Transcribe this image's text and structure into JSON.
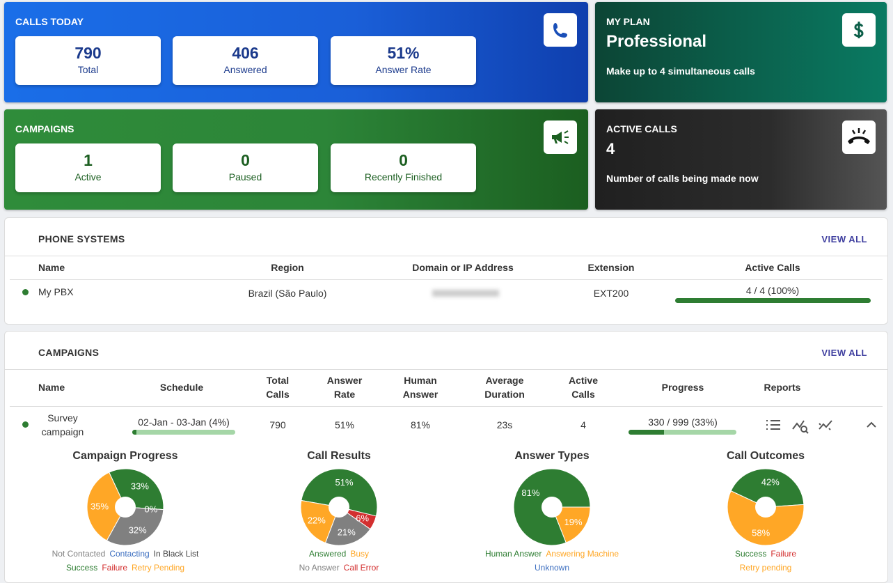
{
  "calls_today": {
    "title": "CALLS TODAY",
    "stats": [
      {
        "value": "790",
        "label": "Total"
      },
      {
        "value": "406",
        "label": "Answered"
      },
      {
        "value": "51%",
        "label": "Answer Rate"
      }
    ]
  },
  "my_plan": {
    "title": "MY PLAN",
    "plan": "Professional",
    "description": "Make up to 4 simultaneous calls"
  },
  "campaigns_summary": {
    "title": "CAMPAIGNS",
    "stats": [
      {
        "value": "1",
        "label": "Active"
      },
      {
        "value": "0",
        "label": "Paused"
      },
      {
        "value": "0",
        "label": "Recently Finished"
      }
    ]
  },
  "active_calls": {
    "title": "ACTIVE CALLS",
    "value": "4",
    "description": "Number of calls being made now"
  },
  "phone_systems": {
    "title": "PHONE SYSTEMS",
    "view_all": "VIEW ALL",
    "columns": [
      "Name",
      "Region",
      "Domain or IP Address",
      "Extension",
      "Active Calls"
    ],
    "rows": [
      {
        "name": "My PBX",
        "region": "Brazil (São Paulo)",
        "extension": "EXT200",
        "active_calls": "4 / 4 (100%)",
        "active_calls_pct": 100
      }
    ]
  },
  "campaigns": {
    "title": "CAMPAIGNS",
    "view_all": "VIEW ALL",
    "columns": [
      "Name",
      "Schedule",
      "Total Calls",
      "Answer Rate",
      "Human Answer",
      "Average Duration",
      "Active Calls",
      "Progress",
      "Reports"
    ],
    "rows": [
      {
        "name": "Survey campaign",
        "schedule": "02-Jan - 03-Jan (4%)",
        "schedule_pct": 4,
        "total_calls": "790",
        "answer_rate": "51%",
        "human_answer": "81%",
        "average_duration": "23s",
        "active_calls": "4",
        "progress": "330 / 999 (33%)",
        "progress_pct": 33
      }
    ]
  },
  "chart_data": [
    {
      "type": "pie",
      "title": "Campaign Progress",
      "categories": [
        "Not Contacted",
        "Contacting",
        "In Black List",
        "Success",
        "Failure",
        "Retry Pending"
      ],
      "values": [
        32,
        0,
        null,
        33,
        null,
        35
      ],
      "value_labels": [
        "32%",
        "0%",
        null,
        "33%",
        null,
        "35%"
      ],
      "colors": [
        "#808080",
        "#3d6fc0",
        "#424242",
        "#2e7d32",
        "#d32f2f",
        "#ffa726"
      ]
    },
    {
      "type": "pie",
      "title": "Call Results",
      "categories": [
        "Answered",
        "Busy",
        "No Answer",
        "Call Error"
      ],
      "values": [
        51,
        22,
        21,
        6
      ],
      "value_labels": [
        "51%",
        "22%",
        "21%",
        "6%"
      ],
      "colors": [
        "#2e7d32",
        "#ffa726",
        "#808080",
        "#d32f2f"
      ]
    },
    {
      "type": "pie",
      "title": "Answer Types",
      "categories": [
        "Human Answer",
        "Answering Machine",
        "Unknown"
      ],
      "values": [
        81,
        19,
        null
      ],
      "value_labels": [
        "81%",
        "19%",
        null
      ],
      "colors": [
        "#2e7d32",
        "#ffa726",
        "#3d6fc0"
      ]
    },
    {
      "type": "pie",
      "title": "Call Outcomes",
      "categories": [
        "Success",
        "Failure",
        "Retry pending"
      ],
      "values": [
        42,
        null,
        58
      ],
      "value_labels": [
        "42%",
        null,
        "58%"
      ],
      "colors": [
        "#2e7d32",
        "#d32f2f",
        "#ffa726"
      ]
    }
  ]
}
